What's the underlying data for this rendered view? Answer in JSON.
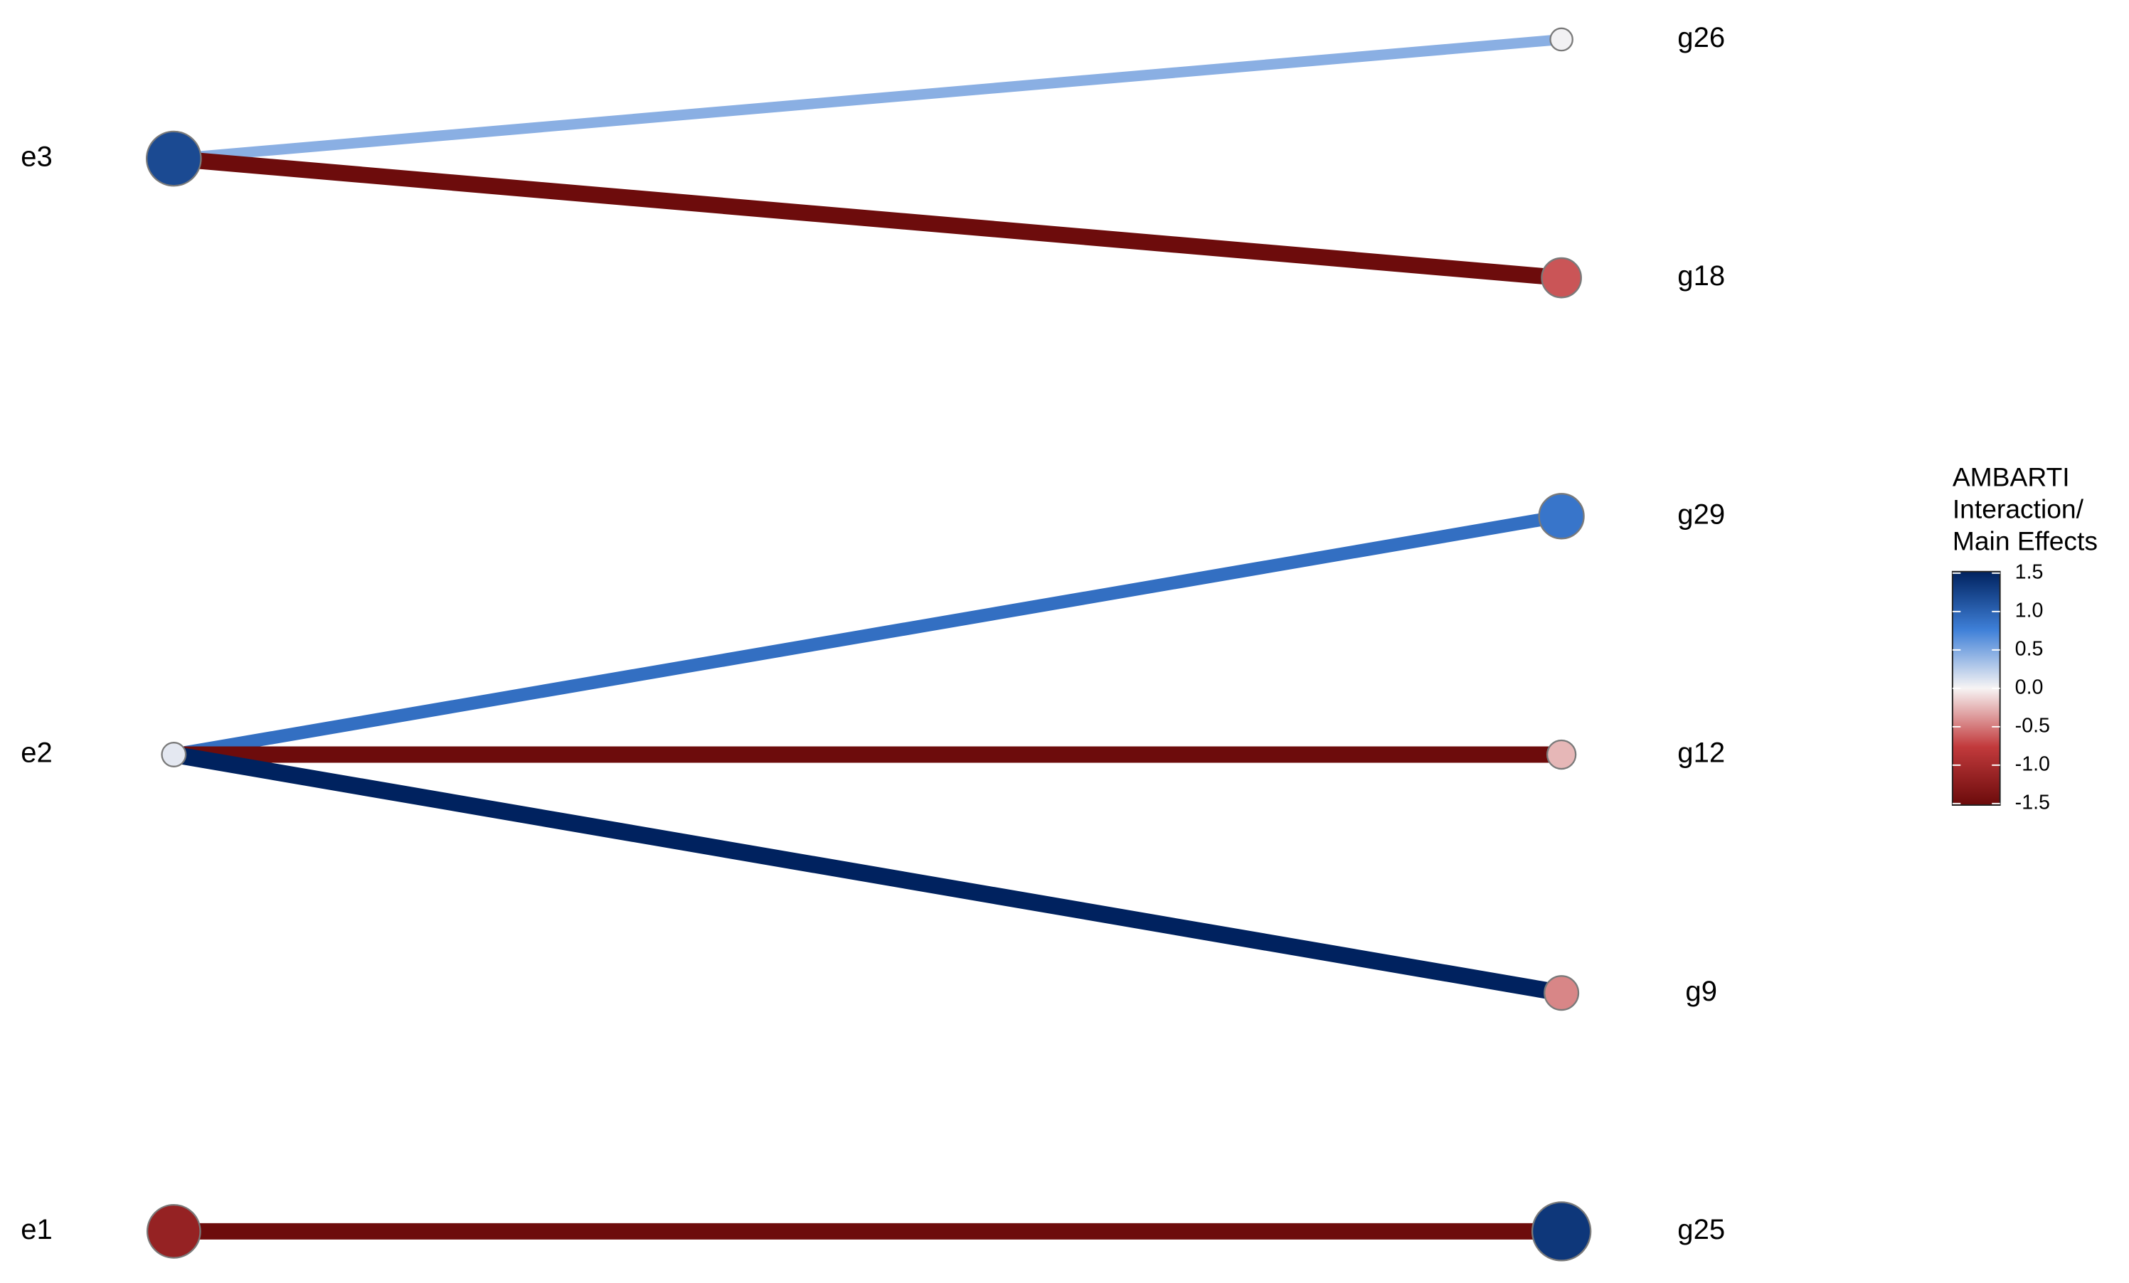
{
  "chart_data": {
    "type": "network",
    "legend_title": [
      "AMBARTI",
      "Interaction/",
      "Main Effects"
    ],
    "nodes": [
      {
        "name": "e3",
        "value": 1.2
      },
      {
        "name": "e2",
        "value": 0.08
      },
      {
        "name": "e1",
        "value": -1.15
      },
      {
        "name": "g26",
        "value": 0.02
      },
      {
        "name": "g18",
        "value": -0.65
      },
      {
        "name": "g29",
        "value": 0.85
      },
      {
        "name": "g12",
        "value": -0.25
      },
      {
        "name": "g9",
        "value": -0.45
      },
      {
        "name": "g25",
        "value": 1.35
      }
    ],
    "edges": [
      {
        "source": "e3",
        "target": "g26",
        "value": 0.45
      },
      {
        "source": "e3",
        "target": "g18",
        "value": -1.5
      },
      {
        "source": "e2",
        "target": "g29",
        "value": 0.9
      },
      {
        "source": "e2",
        "target": "g12",
        "value": -1.5
      },
      {
        "source": "e2",
        "target": "g9",
        "value": 1.6
      },
      {
        "source": "e1",
        "target": "g25",
        "value": -1.5
      }
    ],
    "colorscale": {
      "lim": [
        -1.52,
        1.52
      ],
      "ticks": [
        1.5,
        {
          "value": 1,
          "label": "1.0"
        },
        0.5,
        {
          "value": 0,
          "label": "0.0"
        },
        -0.5,
        {
          "value": -1,
          "label": "-1.0"
        },
        -1.5
      ],
      "colors": [
        "#6b0b0b",
        "#c23a3c",
        "#f7f4f4",
        "#3f80d8",
        "#00225f"
      ]
    }
  }
}
